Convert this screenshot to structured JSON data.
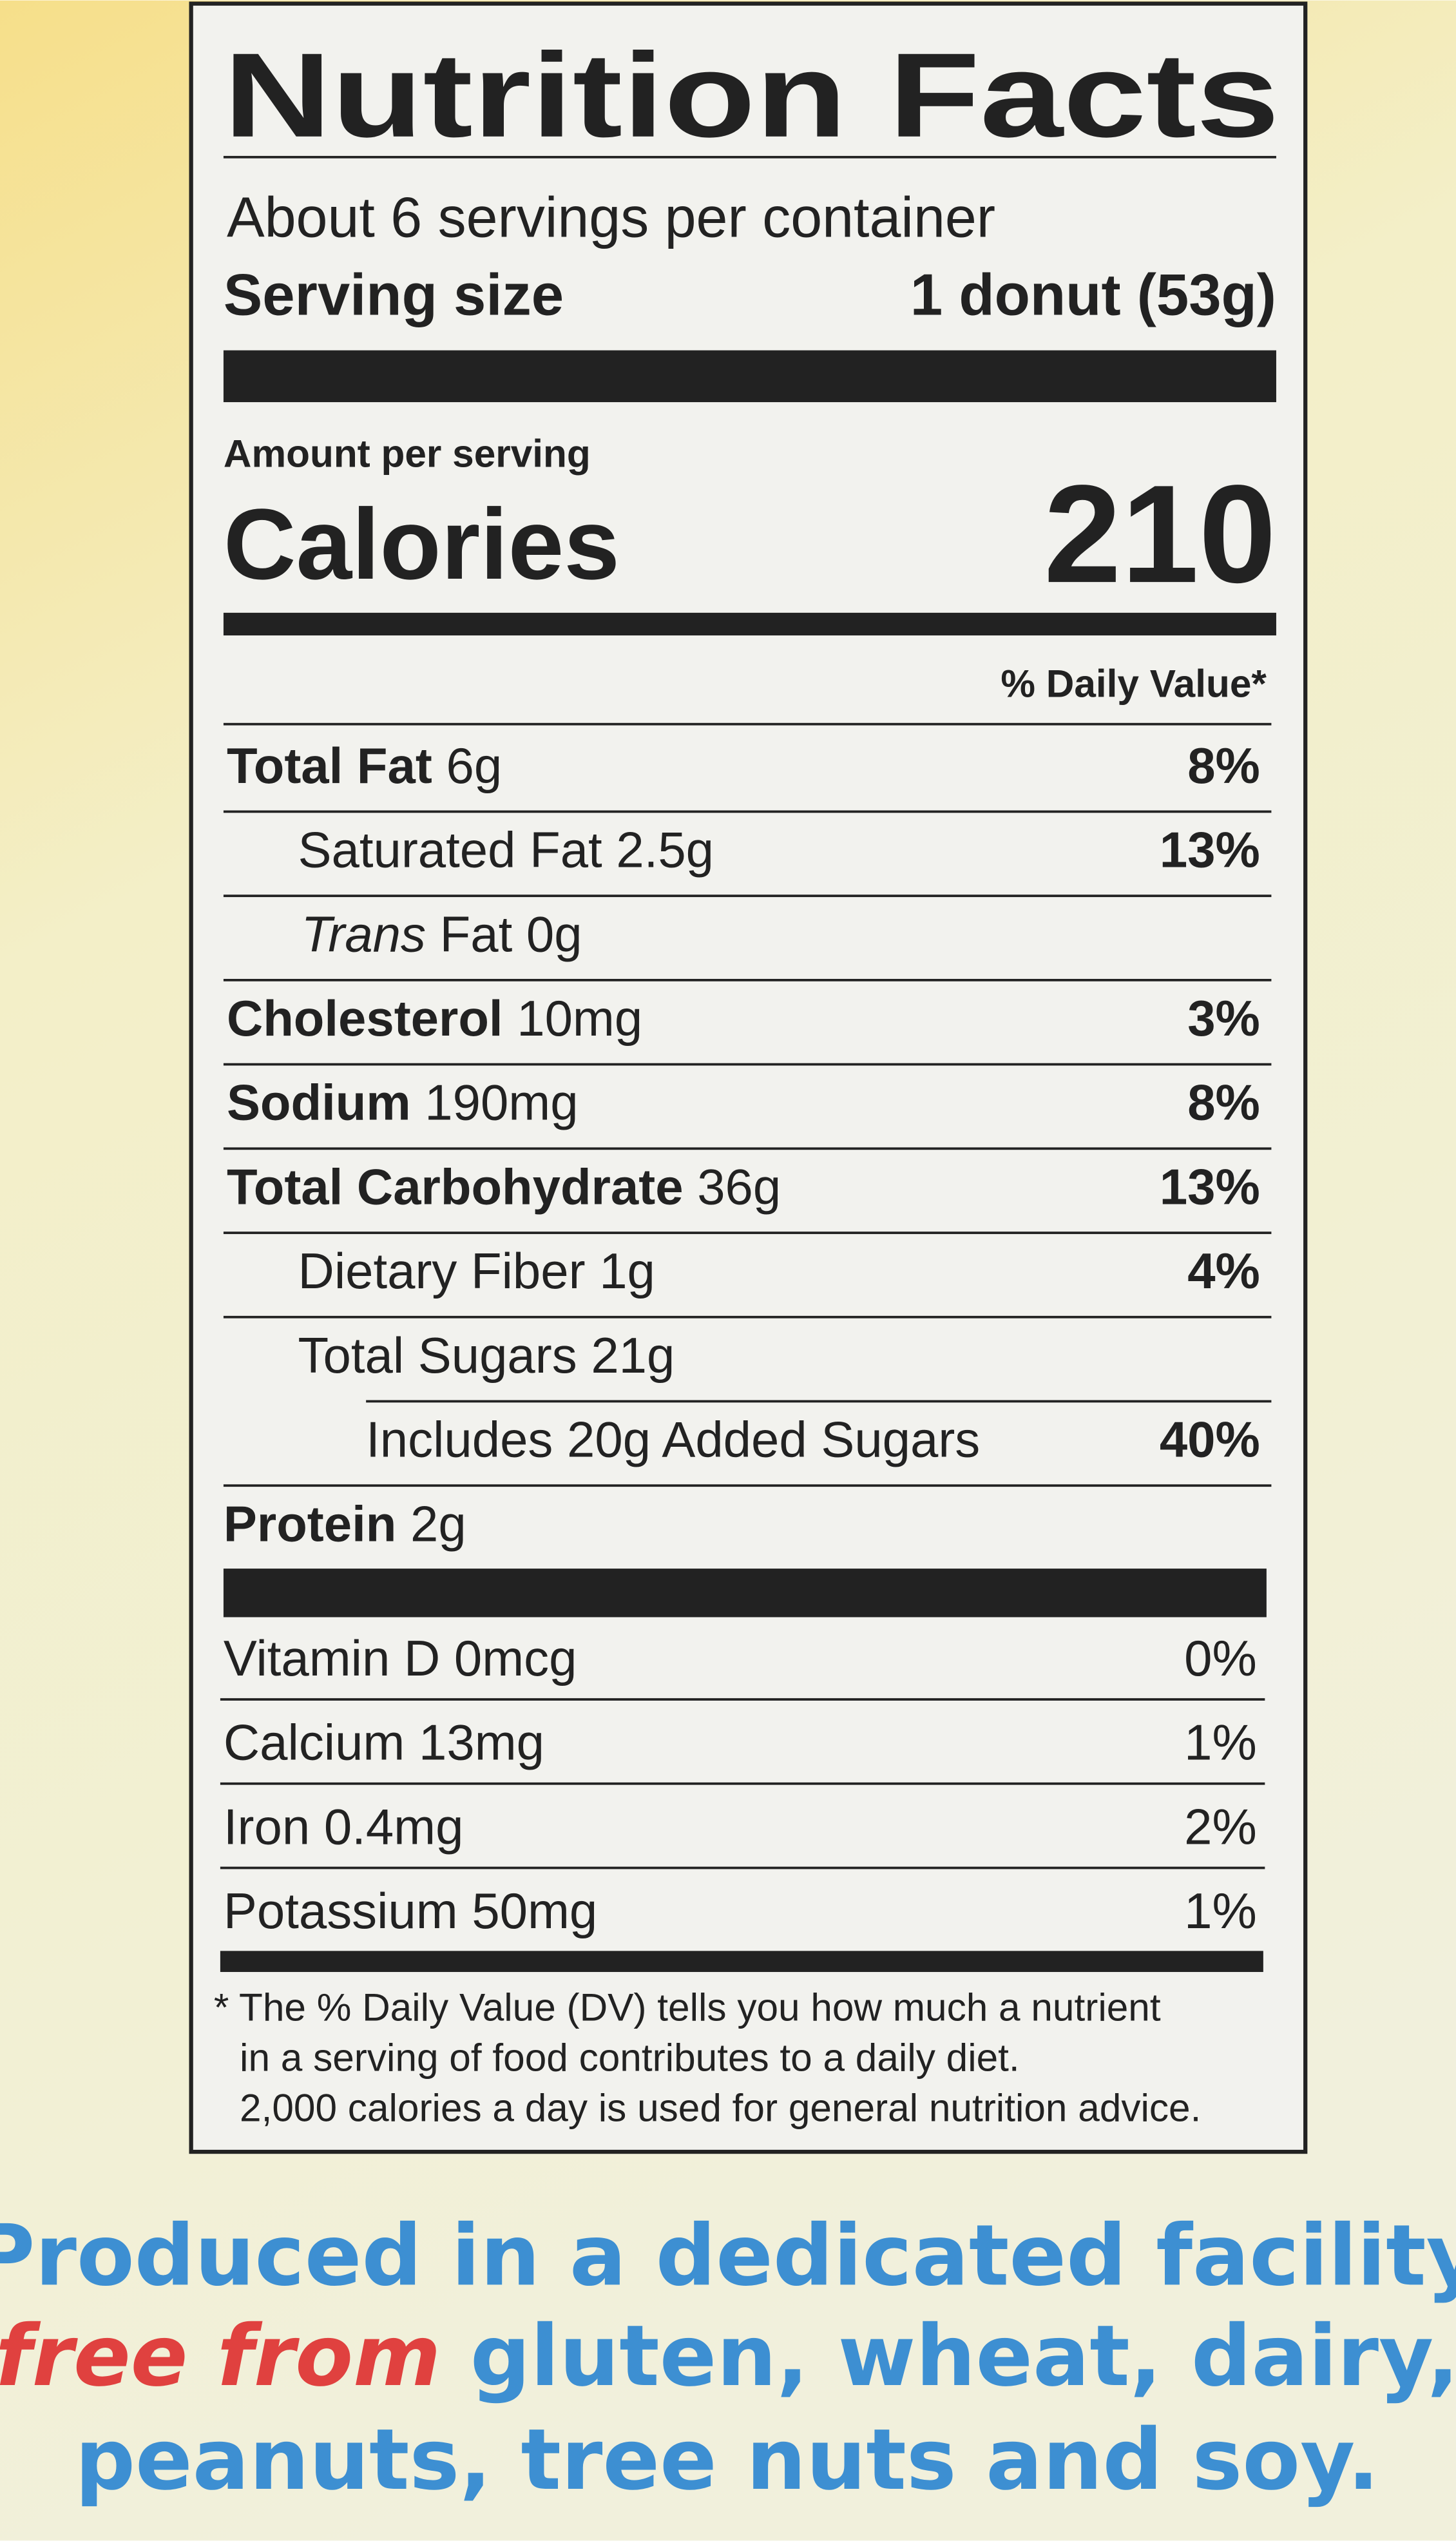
{
  "title": "Nutrition Facts",
  "servings": "About 6 servings per container",
  "serving_size": {
    "label": "Serving size",
    "value": "1 donut (53g)"
  },
  "amount_per_serving": "Amount per serving",
  "calories": {
    "label": "Calories",
    "value": "210"
  },
  "daily_value_header": "% Daily Value*",
  "nutrients": [
    {
      "name": "Total Fat",
      "amount": "6g",
      "dv": "8%"
    },
    {
      "name": "Saturated Fat",
      "amount": "2.5g",
      "dv": "13%"
    },
    {
      "name_italic": "Trans",
      "name": "Fat",
      "amount": "0g"
    },
    {
      "name": "Cholesterol",
      "amount": "10mg",
      "dv": "3%"
    },
    {
      "name": "Sodium",
      "amount": "190mg",
      "dv": "8%"
    },
    {
      "name": "Total Carbohydrate",
      "amount": "36g",
      "dv": "13%"
    },
    {
      "name": "Dietary Fiber",
      "amount": "1g",
      "dv": "4%"
    },
    {
      "name": "Total Sugars",
      "amount": "21g"
    },
    {
      "name": "Includes 20g Added Sugars",
      "dv": "40%"
    },
    {
      "name": "Protein",
      "amount": "2g"
    }
  ],
  "vitamins": [
    {
      "name": "Vitamin D",
      "amount": "0mcg",
      "dv": "0%"
    },
    {
      "name": "Calcium",
      "amount": "13mg",
      "dv": "1%"
    },
    {
      "name": "Iron",
      "amount": "0.4mg",
      "dv": "2%"
    },
    {
      "name": "Potassium",
      "amount": "50mg",
      "dv": "1%"
    }
  ],
  "footnote": [
    "* The % Daily Value (DV) tells you how much a nutrient",
    "in a serving of food contributes to a daily diet.",
    "2,000 calories a day is used for general nutrition advice."
  ],
  "allergen": {
    "line1": "Produced in a dedicated facility",
    "free_from": "free from",
    "line2": "gluten, wheat, dairy,",
    "line3": "peanuts, tree nuts and soy."
  }
}
